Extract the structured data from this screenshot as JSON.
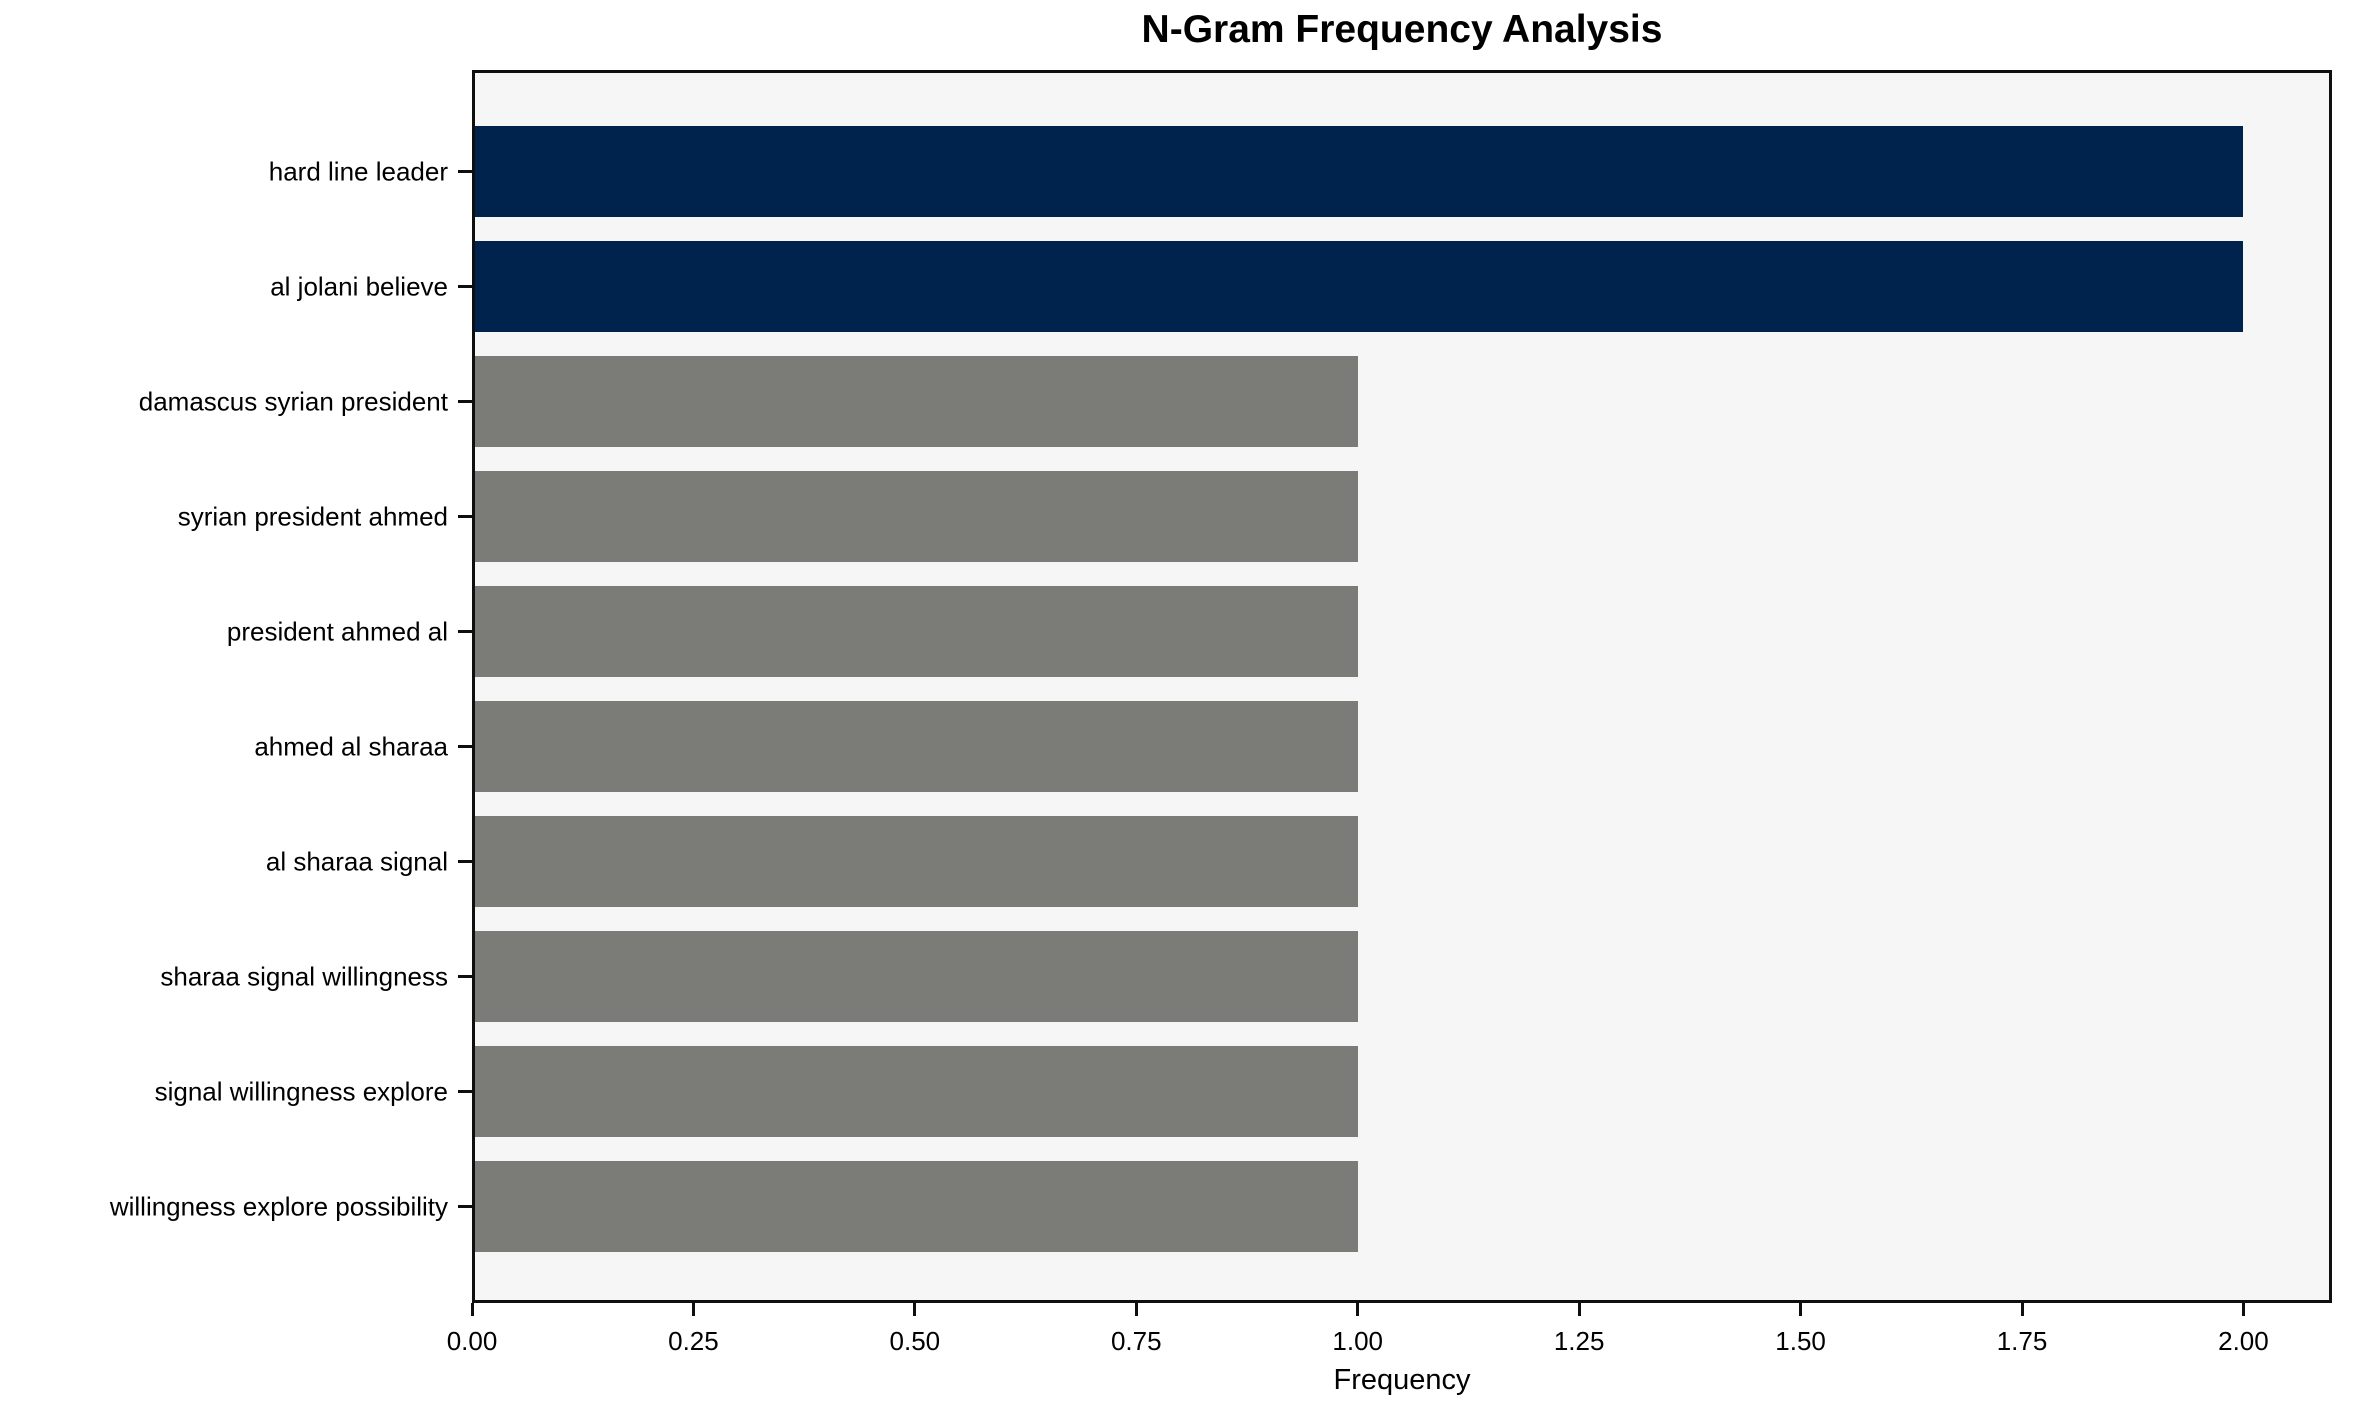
{
  "figure": {
    "background": "#ffffff",
    "plot_background": "#f7f6f6",
    "axis_color": "#0f0f0f",
    "text_color": "#000000"
  },
  "chart_data": {
    "type": "bar",
    "orientation": "horizontal",
    "title": "N-Gram Frequency Analysis",
    "xlabel": "Frequency",
    "ylabel": "",
    "categories": [
      "hard line leader",
      "al jolani believe",
      "damascus syrian president",
      "syrian president ahmed",
      "president ahmed al",
      "ahmed al sharaa",
      "al sharaa signal",
      "sharaa signal willingness",
      "signal willingness explore",
      "willingness explore possibility"
    ],
    "values": [
      2,
      2,
      1,
      1,
      1,
      1,
      1,
      1,
      1,
      1
    ],
    "bar_colors": [
      "#00234d",
      "#00234d",
      "#7b7b78",
      "#7b7b78",
      "#7b7b78",
      "#7b7b78",
      "#7b7b78",
      "#7b7b78",
      "#7b7b78",
      "#7b7b78"
    ],
    "highlight_color": "#00234d",
    "default_color": "#7b7b78",
    "xlim": [
      0,
      2.1
    ],
    "xtick_values": [
      0,
      0.25,
      0.5,
      0.75,
      1.0,
      1.25,
      1.5,
      1.75,
      2.0
    ],
    "xtick_labels": [
      "0.00",
      "0.25",
      "0.50",
      "0.75",
      "1.00",
      "1.25",
      "1.50",
      "1.75",
      "2.00"
    ],
    "grid": false,
    "legend": null
  }
}
